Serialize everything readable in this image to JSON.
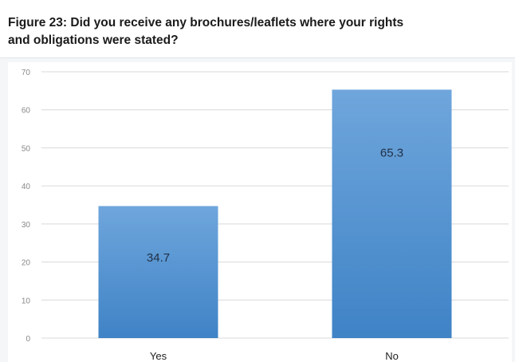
{
  "title": "Figure 23: Did you receive any brochures/leaflets where your rights\nand obligations were stated?",
  "chart_data": {
    "type": "bar",
    "categories": [
      "Yes",
      "No"
    ],
    "values": [
      34.7,
      65.3
    ],
    "data_labels": [
      "34.7",
      "65.3"
    ],
    "ylim": [
      0,
      70
    ],
    "yticks": [
      0,
      10,
      20,
      30,
      40,
      50,
      60,
      70
    ],
    "xlabel": "",
    "ylabel": "",
    "grid": true,
    "legend": "none",
    "colors": {
      "bar_top": "#6fa6dc",
      "bar_bottom": "#3f83c6",
      "grid": "#d9d9d9",
      "tick_text": "#888888",
      "label_text": "#1f2f44"
    }
  }
}
